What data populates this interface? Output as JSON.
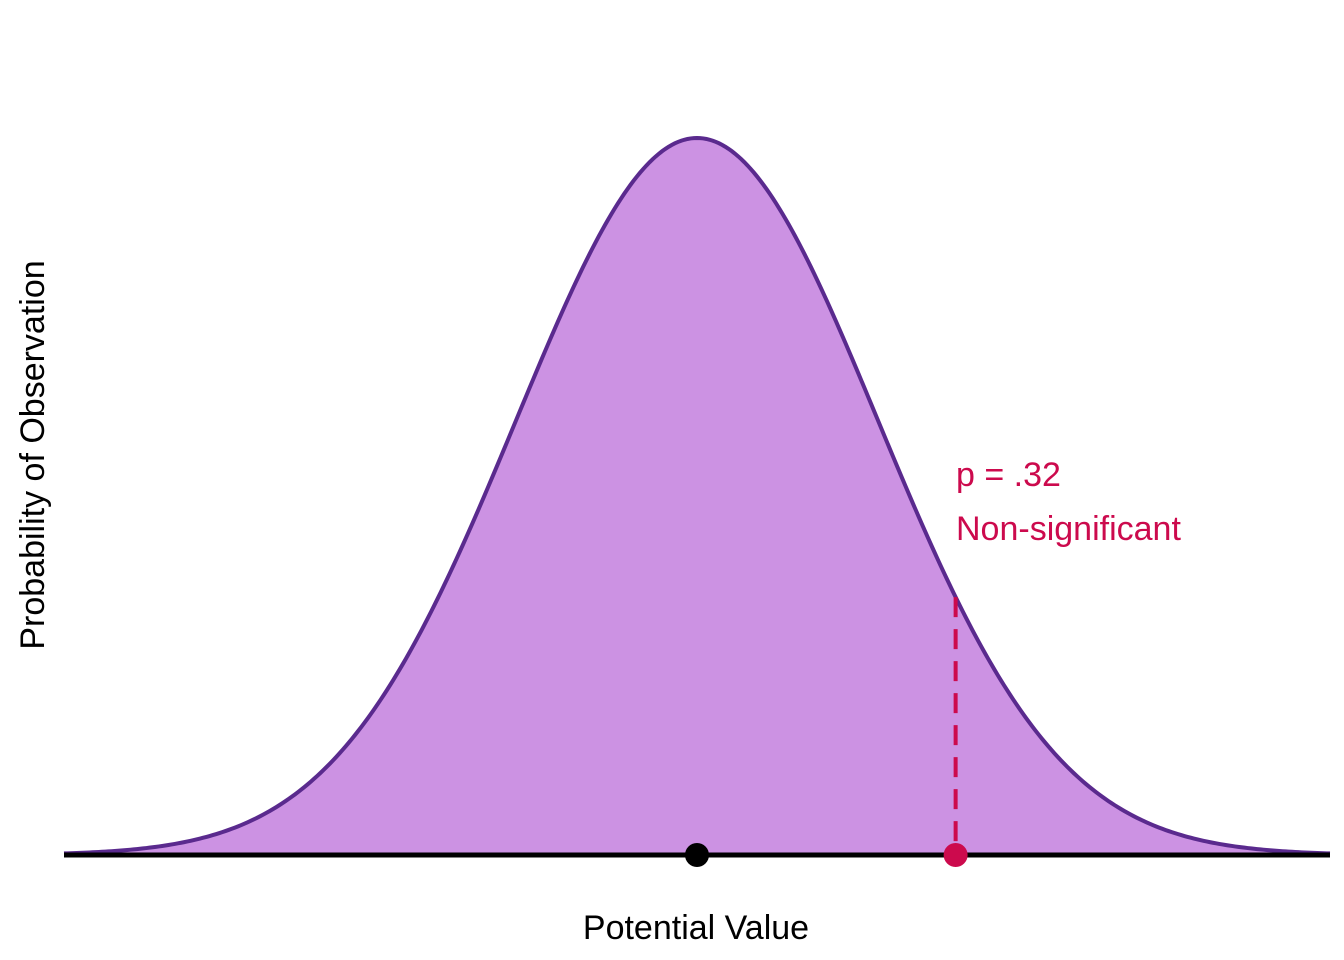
{
  "chart_data": {
    "type": "area",
    "title": "",
    "xlabel": "Potential Value",
    "ylabel": "Probability of Observation",
    "distribution": "normal",
    "mean": 0,
    "sd": 1,
    "xlim": [
      -3.5,
      3.5
    ],
    "ylim": [
      0,
      0.4
    ],
    "grid": false,
    "legend": "none",
    "fill_color": "#cc92e3",
    "line_color": "#5a2a8e",
    "baseline_color": "#000000",
    "mean_point": {
      "x": 0,
      "color": "#000000"
    },
    "observed_point": {
      "x": 1.43,
      "color": "#cc0a4d"
    },
    "annotation": {
      "lines": [
        "p = .32",
        "Non-significant"
      ],
      "color": "#cc0a4d"
    }
  }
}
